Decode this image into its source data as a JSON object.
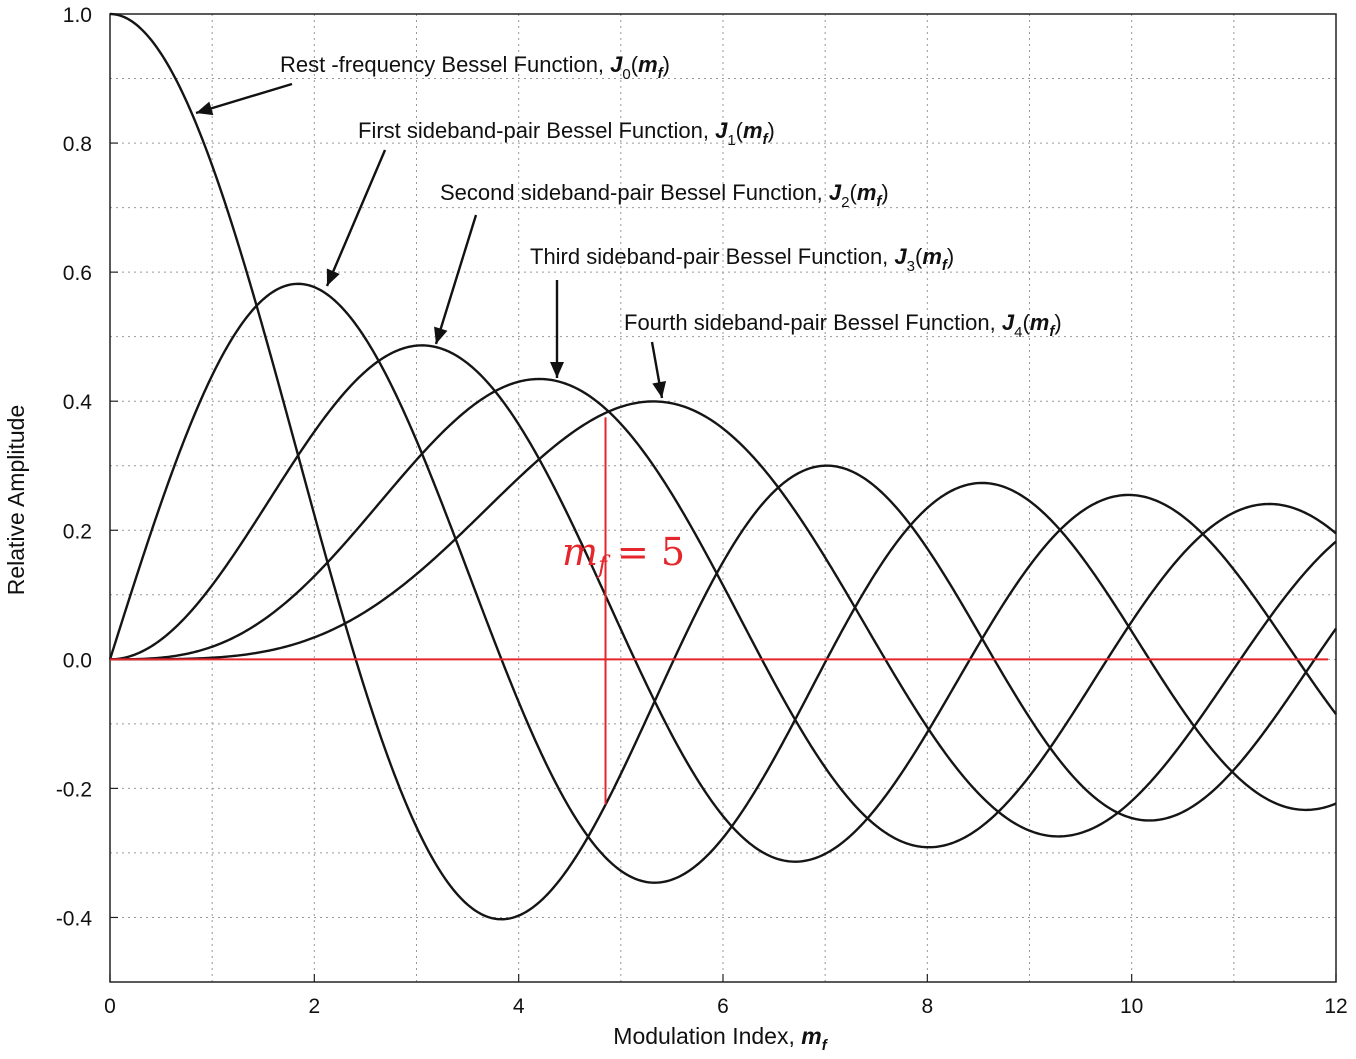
{
  "chart_data": {
    "type": "line",
    "xlabel": "Modulation Index, ",
    "xlabel_symbol": "m",
    "xlabel_sub": "f",
    "ylabel": "Relative Amplitude",
    "xlim": [
      0,
      12
    ],
    "ylim": [
      -0.5,
      1.0
    ],
    "xticks": [
      "0",
      "2",
      "4",
      "6",
      "8",
      "10",
      "12"
    ],
    "yticks": [
      "1.0",
      "0.8",
      "0.6",
      "0.4",
      "0.2",
      "0.0",
      "-0.2",
      "-0.4"
    ],
    "grid": true,
    "series": [
      {
        "name": "Rest -frequency Bessel Function, ",
        "symbol": "J",
        "index": "0",
        "arg": "m",
        "argsub": "f",
        "order": 0,
        "peak_x": 0.0
      },
      {
        "name": "First  sideband-pair Bessel Function, ",
        "symbol": "J",
        "index": "1",
        "arg": "m",
        "argsub": "f",
        "order": 1,
        "peak_x": 1.84
      },
      {
        "name": "Second  sideband-pair Bessel Function, ",
        "symbol": "J",
        "index": "2",
        "arg": "m",
        "argsub": "f",
        "order": 2,
        "peak_x": 3.05
      },
      {
        "name": "Third  sideband-pair Bessel Function, ",
        "symbol": "J",
        "index": "3",
        "arg": "m",
        "argsub": "f",
        "order": 3,
        "peak_x": 4.2
      },
      {
        "name": "Fourth  sideband-pair Bessel Function, ",
        "symbol": "J",
        "index": "4",
        "arg": "m",
        "argsub": "f",
        "order": 4,
        "peak_x": 5.32
      }
    ],
    "annotations": {
      "marker_label": "= 5",
      "marker_symbol": "m",
      "marker_sub": "f",
      "marker_x": 4.85,
      "marker_y_range": [
        -0.225,
        0.375
      ],
      "zero_line_color": "#e5262b"
    }
  }
}
